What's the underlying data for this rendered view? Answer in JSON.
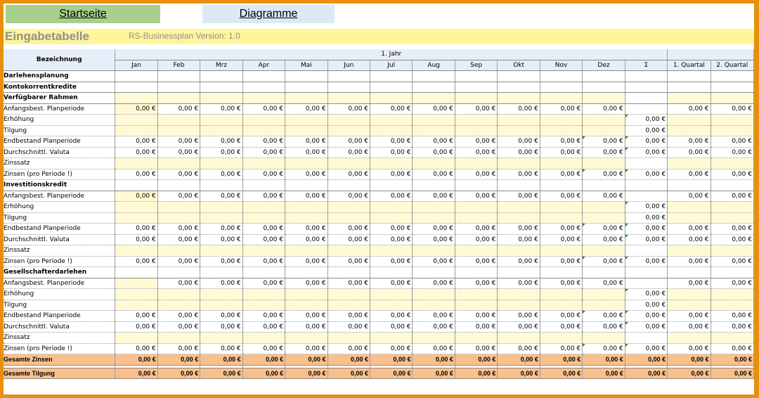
{
  "nav": {
    "start_label": "Startseite",
    "diagram_label": "Diagramme"
  },
  "header": {
    "title": "Eingabetabelle",
    "version": "RS-Businessplan Version:  1.0"
  },
  "table": {
    "bezeichnung_label": "Bezeichnung",
    "year_label": "1. Jahr",
    "months": [
      "Jan",
      "Feb",
      "Mrz",
      "Apr",
      "Mai",
      "Jun",
      "Jul",
      "Aug",
      "Sep",
      "Okt",
      "Nov",
      "Dez"
    ],
    "sum_label": "Σ",
    "quarters": [
      "1. Quartal",
      "2. Quartal"
    ],
    "zero_value": "0,00 €",
    "row_labels": {
      "darlehensplanung": "Darlehensplanung",
      "kontokorrent": "Kontokorrentkredite",
      "verfuegbar": "Verfügbarer Rahmen",
      "investition": "Investitionskredit",
      "gesellschafter": "Gesellschafterdarlehen",
      "anfang": "Anfangsbest. Planperiode",
      "erhoehung": "Erhöhung",
      "tilgung": "Tilgung",
      "endbestand": "Endbestand Planperiode",
      "valuta": "Durchschnittl. Valuta",
      "zinssatz": "Zinssatz",
      "zinsen": "Zinsen (pro Periode !)",
      "gesamt_zinsen": "Gesamte Zinsen",
      "gesamt_tilgung": "Gesamte Tilgung"
    }
  }
}
